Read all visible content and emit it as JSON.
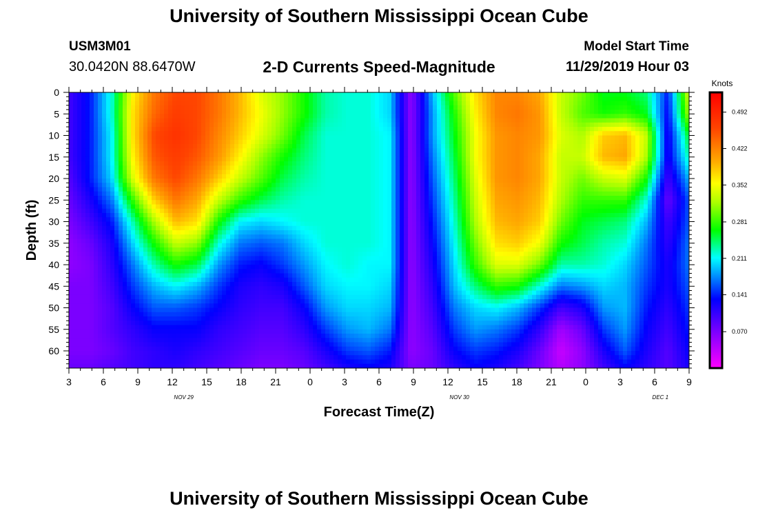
{
  "header": {
    "title_top": "University of Southern Mississippi Ocean Cube",
    "station_id": "USM3M01",
    "coordinates": "30.0420N 88.6470W",
    "model_start_label": "Model Start Time",
    "model_start_value": "11/29/2019 Hour 03"
  },
  "footer": {
    "title_bottom": "University of Southern Mississippi Ocean Cube"
  },
  "chart_data": {
    "type": "heatmap",
    "title": "2-D Currents Speed-Magnitude",
    "xlabel": "Forecast Time(Z)",
    "ylabel": "Depth (ft)",
    "x_start_hour": 3,
    "x_end_hour": 57,
    "x_tick_labels": [
      "3",
      "6",
      "9",
      "12",
      "15",
      "18",
      "21",
      "0",
      "3",
      "6",
      "9",
      "12",
      "15",
      "18",
      "21",
      "0",
      "3",
      "6",
      "9"
    ],
    "date_labels": [
      {
        "text": "NOV 29",
        "hour": 13
      },
      {
        "text": "NOV 30",
        "hour": 37
      },
      {
        "text": "DEC 1",
        "hour": 54.5
      }
    ],
    "y_ticks": [
      0,
      5,
      10,
      15,
      20,
      25,
      30,
      35,
      40,
      45,
      50,
      55,
      60
    ],
    "ylim": [
      0,
      64
    ],
    "colorbar": {
      "label": "Knots",
      "ticks": [
        "0.492",
        "0.422",
        "0.352",
        "0.281",
        "0.211",
        "0.141",
        "0.070"
      ],
      "range": [
        0,
        0.53
      ]
    },
    "grid_rows": [
      {
        "depth": 0,
        "values": [
          0.1,
          0.14,
          0.22,
          0.36,
          0.43,
          0.46,
          0.46,
          0.43,
          0.39,
          0.34,
          0.31,
          0.27,
          0.23,
          0.22,
          0.22,
          0.2,
          0.06,
          0.19,
          0.29,
          0.37,
          0.42,
          0.42,
          0.4,
          0.33,
          0.3,
          0.26,
          0.26,
          0.24,
          0.14,
          0.34
        ]
      },
      {
        "depth": 5,
        "values": [
          0.1,
          0.14,
          0.22,
          0.37,
          0.44,
          0.47,
          0.46,
          0.43,
          0.39,
          0.35,
          0.31,
          0.27,
          0.23,
          0.22,
          0.22,
          0.2,
          0.06,
          0.18,
          0.27,
          0.36,
          0.42,
          0.43,
          0.41,
          0.33,
          0.29,
          0.27,
          0.28,
          0.26,
          0.13,
          0.32
        ]
      },
      {
        "depth": 10,
        "values": [
          0.1,
          0.14,
          0.21,
          0.37,
          0.46,
          0.48,
          0.46,
          0.42,
          0.38,
          0.34,
          0.3,
          0.25,
          0.22,
          0.22,
          0.22,
          0.21,
          0.06,
          0.18,
          0.26,
          0.35,
          0.41,
          0.42,
          0.41,
          0.34,
          0.32,
          0.38,
          0.39,
          0.33,
          0.12,
          0.26
        ]
      },
      {
        "depth": 15,
        "values": [
          0.1,
          0.14,
          0.21,
          0.36,
          0.45,
          0.47,
          0.45,
          0.41,
          0.36,
          0.31,
          0.27,
          0.24,
          0.22,
          0.22,
          0.22,
          0.21,
          0.06,
          0.17,
          0.25,
          0.35,
          0.41,
          0.42,
          0.4,
          0.33,
          0.33,
          0.39,
          0.4,
          0.32,
          0.12,
          0.23
        ]
      },
      {
        "depth": 20,
        "values": [
          0.09,
          0.14,
          0.2,
          0.34,
          0.43,
          0.46,
          0.43,
          0.38,
          0.33,
          0.29,
          0.25,
          0.23,
          0.22,
          0.22,
          0.22,
          0.21,
          0.06,
          0.16,
          0.24,
          0.34,
          0.41,
          0.42,
          0.4,
          0.33,
          0.3,
          0.33,
          0.34,
          0.27,
          0.1,
          0.19
        ]
      },
      {
        "depth": 25,
        "values": [
          0.08,
          0.12,
          0.17,
          0.28,
          0.38,
          0.43,
          0.4,
          0.33,
          0.28,
          0.25,
          0.23,
          0.22,
          0.22,
          0.22,
          0.22,
          0.21,
          0.06,
          0.15,
          0.23,
          0.33,
          0.4,
          0.41,
          0.39,
          0.32,
          0.28,
          0.28,
          0.28,
          0.22,
          0.08,
          0.16
        ]
      },
      {
        "depth": 30,
        "values": [
          0.07,
          0.1,
          0.14,
          0.23,
          0.32,
          0.39,
          0.37,
          0.27,
          0.21,
          0.2,
          0.21,
          0.22,
          0.22,
          0.22,
          0.22,
          0.21,
          0.06,
          0.14,
          0.22,
          0.32,
          0.39,
          0.4,
          0.38,
          0.3,
          0.26,
          0.25,
          0.24,
          0.19,
          0.1,
          0.16
        ]
      },
      {
        "depth": 35,
        "values": [
          0.06,
          0.08,
          0.12,
          0.2,
          0.27,
          0.33,
          0.31,
          0.22,
          0.17,
          0.16,
          0.17,
          0.2,
          0.22,
          0.22,
          0.22,
          0.21,
          0.06,
          0.13,
          0.21,
          0.3,
          0.37,
          0.38,
          0.35,
          0.27,
          0.25,
          0.23,
          0.22,
          0.17,
          0.11,
          0.17
        ]
      },
      {
        "depth": 40,
        "values": [
          0.06,
          0.07,
          0.11,
          0.17,
          0.23,
          0.27,
          0.25,
          0.18,
          0.14,
          0.13,
          0.15,
          0.18,
          0.21,
          0.22,
          0.21,
          0.21,
          0.06,
          0.12,
          0.2,
          0.28,
          0.34,
          0.34,
          0.3,
          0.23,
          0.23,
          0.22,
          0.2,
          0.16,
          0.12,
          0.17
        ]
      },
      {
        "depth": 45,
        "values": [
          0.07,
          0.07,
          0.1,
          0.15,
          0.19,
          0.21,
          0.19,
          0.15,
          0.12,
          0.11,
          0.12,
          0.16,
          0.2,
          0.21,
          0.21,
          0.2,
          0.06,
          0.11,
          0.19,
          0.24,
          0.28,
          0.27,
          0.22,
          0.17,
          0.18,
          0.2,
          0.19,
          0.15,
          0.12,
          0.16
        ]
      },
      {
        "depth": 50,
        "values": [
          0.07,
          0.07,
          0.09,
          0.13,
          0.16,
          0.16,
          0.15,
          0.13,
          0.11,
          0.1,
          0.1,
          0.13,
          0.18,
          0.2,
          0.2,
          0.19,
          0.06,
          0.1,
          0.17,
          0.2,
          0.21,
          0.19,
          0.15,
          0.1,
          0.12,
          0.18,
          0.19,
          0.14,
          0.11,
          0.15
        ]
      },
      {
        "depth": 55,
        "values": [
          0.07,
          0.07,
          0.09,
          0.11,
          0.13,
          0.13,
          0.13,
          0.11,
          0.1,
          0.09,
          0.09,
          0.11,
          0.15,
          0.18,
          0.19,
          0.17,
          0.06,
          0.09,
          0.15,
          0.18,
          0.17,
          0.15,
          0.11,
          0.05,
          0.08,
          0.15,
          0.18,
          0.13,
          0.1,
          0.14
        ]
      },
      {
        "depth": 60,
        "values": [
          0.07,
          0.07,
          0.08,
          0.1,
          0.11,
          0.12,
          0.11,
          0.1,
          0.09,
          0.08,
          0.08,
          0.09,
          0.12,
          0.15,
          0.16,
          0.14,
          0.06,
          0.08,
          0.13,
          0.15,
          0.14,
          0.12,
          0.08,
          0.03,
          0.06,
          0.12,
          0.16,
          0.12,
          0.09,
          0.13
        ]
      },
      {
        "depth": 64,
        "values": [
          0.08,
          0.08,
          0.09,
          0.1,
          0.11,
          0.11,
          0.1,
          0.09,
          0.08,
          0.07,
          0.07,
          0.08,
          0.1,
          0.12,
          0.13,
          0.12,
          0.07,
          0.08,
          0.11,
          0.13,
          0.12,
          0.1,
          0.07,
          0.04,
          0.06,
          0.1,
          0.13,
          0.11,
          0.09,
          0.12
        ]
      }
    ]
  }
}
